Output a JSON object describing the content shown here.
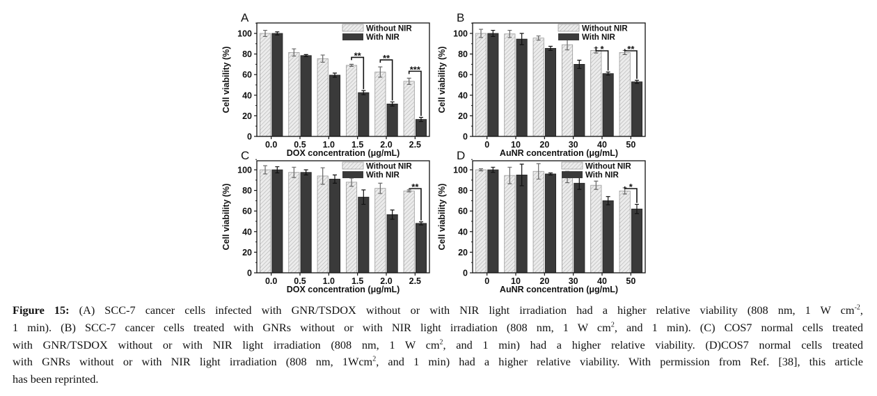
{
  "chart_data": [
    {
      "type": "bar",
      "panel_label": "A",
      "categories": [
        "0.0",
        "0.5",
        "1.0",
        "1.5",
        "2.0",
        "2.5"
      ],
      "xlabel": "DOX concentration (μg/mL)",
      "ylabel": "Cell viability (%)",
      "ylim": [
        0,
        105
      ],
      "yticks": [
        "0",
        "20",
        "40",
        "60",
        "80",
        "100"
      ],
      "legend_position": "top-right",
      "series": [
        {
          "name": "Without NIR",
          "values": [
            100,
            81.5,
            75.5,
            69,
            62.5,
            53.5
          ],
          "errors": [
            3,
            3.5,
            3.5,
            1,
            5,
            3
          ]
        },
        {
          "name": "With NIR",
          "values": [
            100,
            78.5,
            59.5,
            42.5,
            31.5,
            16.5
          ],
          "errors": [
            1.5,
            1,
            2,
            2,
            2,
            2
          ]
        }
      ],
      "significance": [
        {
          "category": "1.5",
          "label": "**"
        },
        {
          "category": "2.0",
          "label": "**"
        },
        {
          "category": "2.5",
          "label": "***"
        }
      ]
    },
    {
      "type": "bar",
      "panel_label": "B",
      "categories": [
        "0",
        "10",
        "20",
        "30",
        "40",
        "50"
      ],
      "xlabel": "AuNR concentration (μg/mL)",
      "ylabel": "Cell viability (%)",
      "ylim": [
        0,
        105
      ],
      "yticks": [
        "0",
        "20",
        "40",
        "60",
        "80",
        "100"
      ],
      "legend_position": "top-right",
      "series": [
        {
          "name": "Without NIR",
          "values": [
            100,
            99.5,
            95.5,
            89,
            83.5,
            81.5
          ],
          "errors": [
            4,
            3.5,
            2,
            5,
            2.5,
            2
          ]
        },
        {
          "name": "With NIR",
          "values": [
            100,
            94.5,
            85.5,
            70,
            61,
            53
          ],
          "errors": [
            3,
            5.5,
            2,
            4,
            1.5,
            1.5
          ]
        }
      ],
      "significance": [
        {
          "category": "40",
          "label": "*"
        },
        {
          "category": "50",
          "label": "**"
        }
      ]
    },
    {
      "type": "bar",
      "panel_label": "C",
      "categories": [
        "0.0",
        "0.5",
        "1.0",
        "1.5",
        "2.0",
        "2.5"
      ],
      "xlabel": "DOX concentration (μg/mL)",
      "ylabel": "Cell viability (%)",
      "ylim": [
        0,
        105
      ],
      "yticks": [
        "0",
        "20",
        "40",
        "60",
        "80",
        "100"
      ],
      "legend_position": "top-right",
      "series": [
        {
          "name": "Without NIR",
          "values": [
            100,
            97.5,
            94,
            88,
            82,
            79.5
          ],
          "errors": [
            4,
            5,
            8,
            4,
            5,
            1
          ]
        },
        {
          "name": "With NIR",
          "values": [
            100,
            97.5,
            91,
            73.5,
            56.5,
            48
          ],
          "errors": [
            3,
            2.5,
            4,
            7,
            4.5,
            1.5
          ]
        }
      ],
      "significance": [
        {
          "category": "2.5",
          "label": "**"
        }
      ]
    },
    {
      "type": "bar",
      "panel_label": "D",
      "categories": [
        "0",
        "10",
        "20",
        "30",
        "40",
        "50"
      ],
      "xlabel": "AuNR concentration (μg/mL)",
      "ylabel": "Cell viability (%)",
      "ylim": [
        0,
        105
      ],
      "yticks": [
        "0",
        "20",
        "40",
        "60",
        "80",
        "100"
      ],
      "legend_position": "top-right",
      "series": [
        {
          "name": "Without NIR",
          "values": [
            100,
            94.5,
            98.5,
            93,
            85,
            79.5
          ],
          "errors": [
            1,
            8,
            7.5,
            5.5,
            4,
            3
          ]
        },
        {
          "name": "With NIR",
          "values": [
            100,
            95,
            96,
            87,
            70,
            62
          ],
          "errors": [
            2.5,
            10.5,
            1,
            6,
            4,
            4.5
          ]
        }
      ],
      "significance": [
        {
          "category": "50",
          "label": "*"
        }
      ]
    }
  ],
  "colors": {
    "without_nir_fill": "#e8e8e8",
    "without_nir_hatch": "#b0b0b0",
    "with_nir": "#3a3a3a",
    "axis": "#111111"
  },
  "caption": {
    "label": "Figure  15:",
    "l1a": " (A) SCC-7 cancer cells infected with GNR/TSDOX without or with NIR light irradiation had a higher relative viability (808 nm, 1 W cm",
    "l1sup": "-2",
    "l1b": ",",
    "l2a": "1 min).  (B) SCC-7 cancer cells treated with GNRs without or with NIR light irradiation (808 nm, 1 W cm",
    "l2sup": "2",
    "l2b": ", and 1 min).  (C) COS7 normal cells treated",
    "l3a": "with GNR/TSDOX without or with NIR light irradiation (808 nm, 1 W cm",
    "l3sup": "2",
    "l3b": ", and 1 min) had a higher relative viability. (D)COS7 normal cells treated",
    "l4a": "with GNRs without or with NIR light irradiation (808 nm, 1Wcm",
    "l4sup": "2",
    "l4b": ", and 1 min) had a higher relative viability. With permission from Ref. [38], this article",
    "l5": "has been reprinted."
  }
}
